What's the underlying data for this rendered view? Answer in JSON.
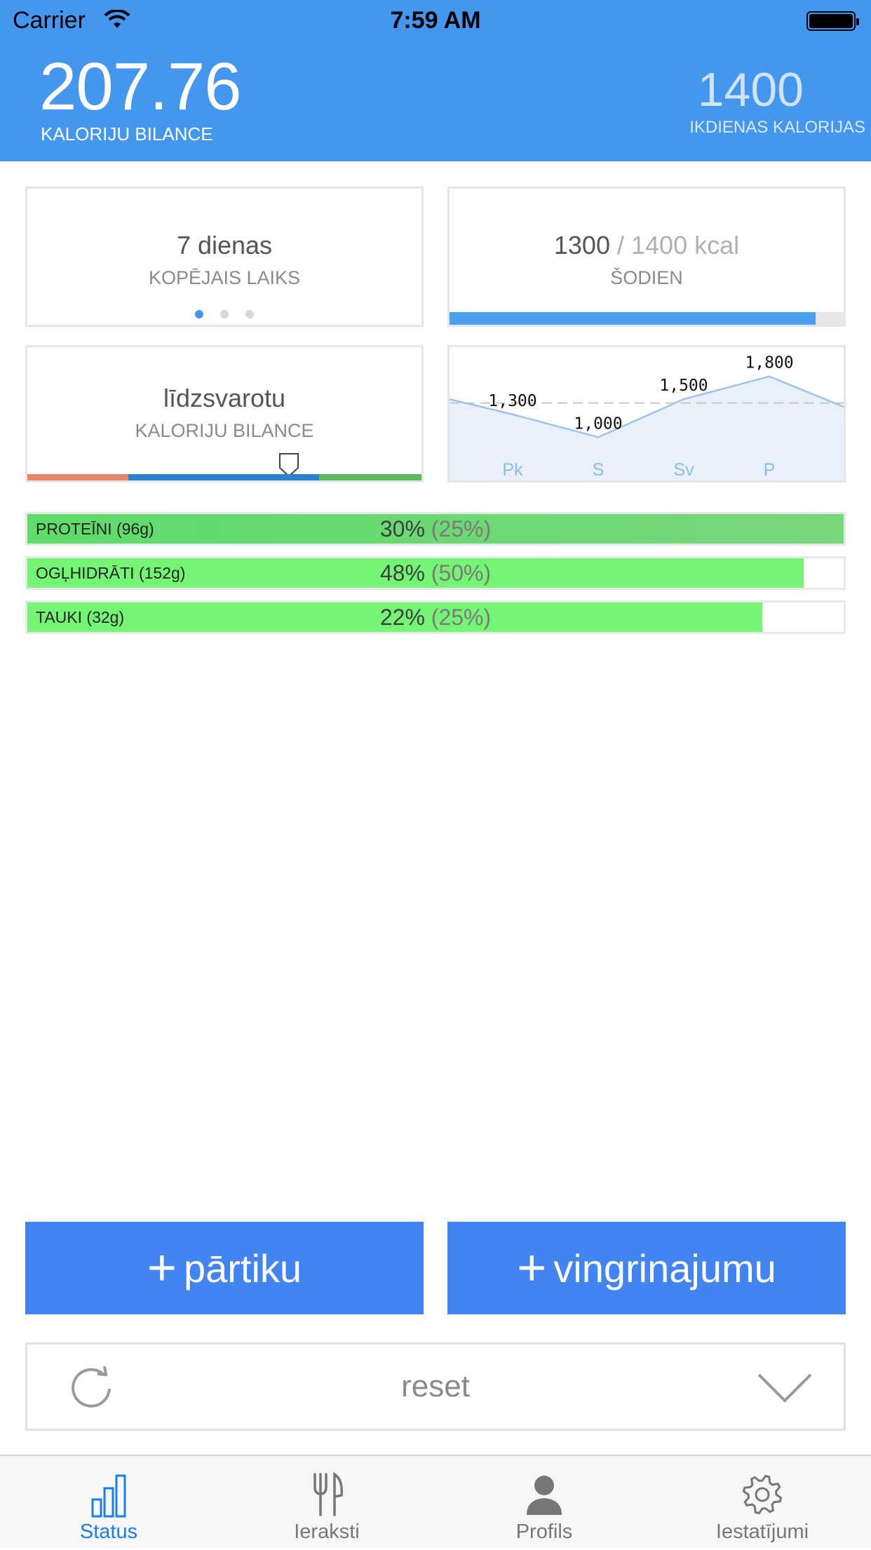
{
  "status_bar": {
    "carrier": "Carrier",
    "time": "7:59 AM"
  },
  "header": {
    "balance_value": "207.76",
    "balance_label": "KALORIJU BILANCE",
    "daily_value": "1400",
    "daily_label": "IKDIENAS KALORIJAS"
  },
  "cards": {
    "period": {
      "title": "7 dienas",
      "subtitle": "KOPĒJAIS LAIKS",
      "page": 1,
      "pages": 3
    },
    "today": {
      "consumed": "1300",
      "separator": " / ",
      "target": "1400 kcal",
      "subtitle": "ŠODIEN",
      "progress": 0.928
    },
    "balance": {
      "title": "līdzsvarotu",
      "subtitle": "KALORIJU BILANCE"
    }
  },
  "chart_data": {
    "type": "area",
    "categories": [
      "Pk",
      "S",
      "Sv",
      "P"
    ],
    "values": [
      1300,
      1000,
      1500,
      1800
    ],
    "data_labels": [
      "1,300",
      "1,000",
      "1,500",
      "1,800"
    ],
    "colors": {
      "line": "#9fc2ea",
      "fill": "#e8f1fb",
      "reference": "#c8c8c8",
      "labels": "#8fbbe8"
    }
  },
  "macros": [
    {
      "label": "PROTEĪNI (96g)",
      "percent": "30%",
      "goal": "(25%)",
      "fill": 1.0
    },
    {
      "label": "OGĻHIDRĀTI (152g)",
      "percent": "48%",
      "goal": "(50%)",
      "fill": 0.951
    },
    {
      "label": "TAUKI (32g)",
      "percent": "22%",
      "goal": "(25%)",
      "fill": 0.9
    }
  ],
  "actions": {
    "add_food": "pārtiku",
    "add_exercise": "vingrinajumu",
    "plus_symbol": "+",
    "reset": "reset"
  },
  "tabs": [
    {
      "label": "Status",
      "icon": "bar-chart-icon",
      "active": true
    },
    {
      "label": "Ieraksti",
      "icon": "fork-knife-icon",
      "active": false
    },
    {
      "label": "Profils",
      "icon": "person-icon",
      "active": false
    },
    {
      "label": "Iestatījumi",
      "icon": "gear-icon",
      "active": false
    }
  ],
  "colors": {
    "header": "#4596ee",
    "button": "#4285f0",
    "accent": "#1b7df0",
    "macro_fill": "#74f574",
    "balance_segments": [
      "#e8856a",
      "#2a7fd0",
      "#5cb85c"
    ]
  }
}
